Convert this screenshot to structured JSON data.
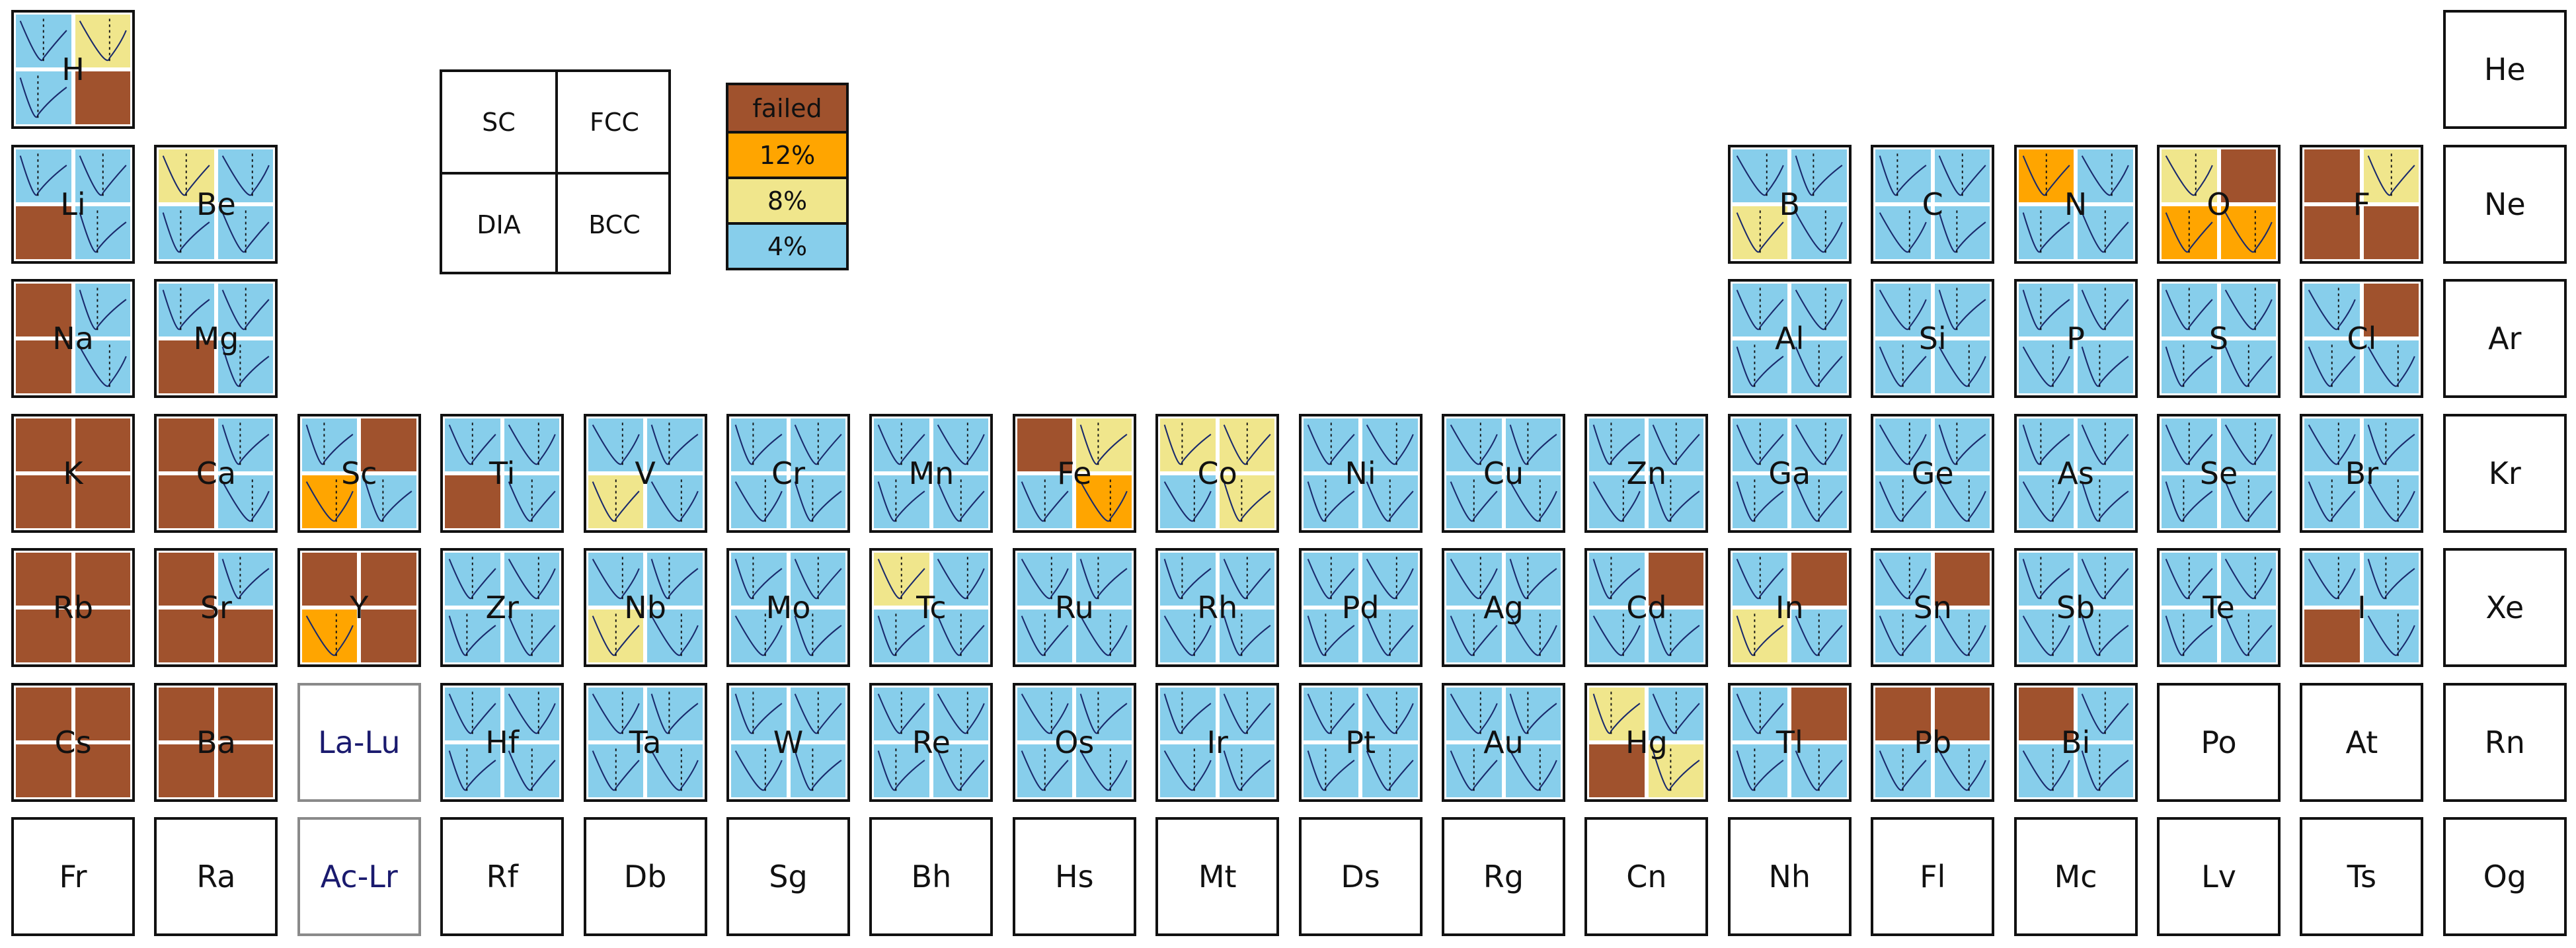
{
  "colors": {
    "failed": "#a0522d",
    "12%": "#ffa500",
    "8%": "#f0e68c",
    "4%": "#87ceeb",
    "line": "#1a2a6c",
    "placeholder_text": "#1a1a6e"
  },
  "key": {
    "top_left": "SC",
    "top_right": "FCC",
    "bottom_left": "DIA",
    "bottom_right": "BCC"
  },
  "legend": [
    {
      "label": "failed",
      "color_key": "failed"
    },
    {
      "label": "12%",
      "color_key": "12%"
    },
    {
      "label": "8%",
      "color_key": "8%"
    },
    {
      "label": "4%",
      "color_key": "4%"
    }
  ],
  "note": "Each element tile: 4 quadrants in order SC, FCC, DIA, BCC (see key). Quadrant codes: F=failed, O=12%, Y=8%, B=4%; empty list = no data.",
  "elements": [
    {
      "symbol": "H",
      "row": 1,
      "col": 1,
      "q": [
        "B",
        "Y",
        "B",
        "F"
      ]
    },
    {
      "symbol": "He",
      "row": 1,
      "col": 18,
      "q": []
    },
    {
      "symbol": "Li",
      "row": 2,
      "col": 1,
      "q": [
        "B",
        "B",
        "F",
        "B"
      ]
    },
    {
      "symbol": "Be",
      "row": 2,
      "col": 2,
      "q": [
        "Y",
        "B",
        "B",
        "B"
      ]
    },
    {
      "symbol": "B",
      "row": 2,
      "col": 13,
      "q": [
        "B",
        "B",
        "Y",
        "B"
      ]
    },
    {
      "symbol": "C",
      "row": 2,
      "col": 14,
      "q": [
        "B",
        "B",
        "B",
        "B"
      ]
    },
    {
      "symbol": "N",
      "row": 2,
      "col": 15,
      "q": [
        "O",
        "B",
        "B",
        "B"
      ]
    },
    {
      "symbol": "O",
      "row": 2,
      "col": 16,
      "q": [
        "Y",
        "F",
        "O",
        "O"
      ]
    },
    {
      "symbol": "F",
      "row": 2,
      "col": 17,
      "q": [
        "F",
        "Y",
        "F",
        "F"
      ]
    },
    {
      "symbol": "Ne",
      "row": 2,
      "col": 18,
      "q": []
    },
    {
      "symbol": "Na",
      "row": 3,
      "col": 1,
      "q": [
        "F",
        "B",
        "F",
        "B"
      ]
    },
    {
      "symbol": "Mg",
      "row": 3,
      "col": 2,
      "q": [
        "B",
        "B",
        "F",
        "B"
      ]
    },
    {
      "symbol": "Al",
      "row": 3,
      "col": 13,
      "q": [
        "B",
        "B",
        "B",
        "B"
      ]
    },
    {
      "symbol": "Si",
      "row": 3,
      "col": 14,
      "q": [
        "B",
        "B",
        "B",
        "B"
      ]
    },
    {
      "symbol": "P",
      "row": 3,
      "col": 15,
      "q": [
        "B",
        "B",
        "B",
        "B"
      ]
    },
    {
      "symbol": "S",
      "row": 3,
      "col": 16,
      "q": [
        "B",
        "B",
        "B",
        "B"
      ]
    },
    {
      "symbol": "Cl",
      "row": 3,
      "col": 17,
      "q": [
        "B",
        "F",
        "B",
        "B"
      ]
    },
    {
      "symbol": "Ar",
      "row": 3,
      "col": 18,
      "q": []
    },
    {
      "symbol": "K",
      "row": 4,
      "col": 1,
      "q": [
        "F",
        "F",
        "F",
        "F"
      ]
    },
    {
      "symbol": "Ca",
      "row": 4,
      "col": 2,
      "q": [
        "F",
        "B",
        "F",
        "B"
      ]
    },
    {
      "symbol": "Sc",
      "row": 4,
      "col": 3,
      "q": [
        "B",
        "F",
        "O",
        "B"
      ]
    },
    {
      "symbol": "Ti",
      "row": 4,
      "col": 4,
      "q": [
        "B",
        "B",
        "F",
        "B"
      ]
    },
    {
      "symbol": "V",
      "row": 4,
      "col": 5,
      "q": [
        "B",
        "B",
        "Y",
        "B"
      ]
    },
    {
      "symbol": "Cr",
      "row": 4,
      "col": 6,
      "q": [
        "B",
        "B",
        "B",
        "B"
      ]
    },
    {
      "symbol": "Mn",
      "row": 4,
      "col": 7,
      "q": [
        "B",
        "B",
        "B",
        "B"
      ]
    },
    {
      "symbol": "Fe",
      "row": 4,
      "col": 8,
      "q": [
        "F",
        "Y",
        "B",
        "O"
      ]
    },
    {
      "symbol": "Co",
      "row": 4,
      "col": 9,
      "q": [
        "Y",
        "Y",
        "B",
        "Y"
      ]
    },
    {
      "symbol": "Ni",
      "row": 4,
      "col": 10,
      "q": [
        "B",
        "B",
        "B",
        "B"
      ]
    },
    {
      "symbol": "Cu",
      "row": 4,
      "col": 11,
      "q": [
        "B",
        "B",
        "B",
        "B"
      ]
    },
    {
      "symbol": "Zn",
      "row": 4,
      "col": 12,
      "q": [
        "B",
        "B",
        "B",
        "B"
      ]
    },
    {
      "symbol": "Ga",
      "row": 4,
      "col": 13,
      "q": [
        "B",
        "B",
        "B",
        "B"
      ]
    },
    {
      "symbol": "Ge",
      "row": 4,
      "col": 14,
      "q": [
        "B",
        "B",
        "B",
        "B"
      ]
    },
    {
      "symbol": "As",
      "row": 4,
      "col": 15,
      "q": [
        "B",
        "B",
        "B",
        "B"
      ]
    },
    {
      "symbol": "Se",
      "row": 4,
      "col": 16,
      "q": [
        "B",
        "B",
        "B",
        "B"
      ]
    },
    {
      "symbol": "Br",
      "row": 4,
      "col": 17,
      "q": [
        "B",
        "B",
        "B",
        "B"
      ]
    },
    {
      "symbol": "Kr",
      "row": 4,
      "col": 18,
      "q": []
    },
    {
      "symbol": "Rb",
      "row": 5,
      "col": 1,
      "q": [
        "F",
        "F",
        "F",
        "F"
      ]
    },
    {
      "symbol": "Sr",
      "row": 5,
      "col": 2,
      "q": [
        "F",
        "B",
        "F",
        "F"
      ]
    },
    {
      "symbol": "Y",
      "row": 5,
      "col": 3,
      "q": [
        "F",
        "F",
        "O",
        "F"
      ]
    },
    {
      "symbol": "Zr",
      "row": 5,
      "col": 4,
      "q": [
        "B",
        "B",
        "B",
        "B"
      ]
    },
    {
      "symbol": "Nb",
      "row": 5,
      "col": 5,
      "q": [
        "B",
        "B",
        "Y",
        "B"
      ]
    },
    {
      "symbol": "Mo",
      "row": 5,
      "col": 6,
      "q": [
        "B",
        "B",
        "B",
        "B"
      ]
    },
    {
      "symbol": "Tc",
      "row": 5,
      "col": 7,
      "q": [
        "Y",
        "B",
        "B",
        "B"
      ]
    },
    {
      "symbol": "Ru",
      "row": 5,
      "col": 8,
      "q": [
        "B",
        "B",
        "B",
        "B"
      ]
    },
    {
      "symbol": "Rh",
      "row": 5,
      "col": 9,
      "q": [
        "B",
        "B",
        "B",
        "B"
      ]
    },
    {
      "symbol": "Pd",
      "row": 5,
      "col": 10,
      "q": [
        "B",
        "B",
        "B",
        "B"
      ]
    },
    {
      "symbol": "Ag",
      "row": 5,
      "col": 11,
      "q": [
        "B",
        "B",
        "B",
        "B"
      ]
    },
    {
      "symbol": "Cd",
      "row": 5,
      "col": 12,
      "q": [
        "B",
        "F",
        "B",
        "B"
      ]
    },
    {
      "symbol": "In",
      "row": 5,
      "col": 13,
      "q": [
        "B",
        "F",
        "Y",
        "B"
      ]
    },
    {
      "symbol": "Sn",
      "row": 5,
      "col": 14,
      "q": [
        "B",
        "F",
        "B",
        "B"
      ]
    },
    {
      "symbol": "Sb",
      "row": 5,
      "col": 15,
      "q": [
        "B",
        "B",
        "B",
        "B"
      ]
    },
    {
      "symbol": "Te",
      "row": 5,
      "col": 16,
      "q": [
        "B",
        "B",
        "B",
        "B"
      ]
    },
    {
      "symbol": "I",
      "row": 5,
      "col": 17,
      "q": [
        "B",
        "B",
        "F",
        "B"
      ]
    },
    {
      "symbol": "Xe",
      "row": 5,
      "col": 18,
      "q": []
    },
    {
      "symbol": "Cs",
      "row": 6,
      "col": 1,
      "q": [
        "F",
        "F",
        "F",
        "F"
      ]
    },
    {
      "symbol": "Ba",
      "row": 6,
      "col": 2,
      "q": [
        "F",
        "F",
        "F",
        "F"
      ]
    },
    {
      "symbol": "La-Lu",
      "row": 6,
      "col": 3,
      "q": [],
      "placeholder": true
    },
    {
      "symbol": "Hf",
      "row": 6,
      "col": 4,
      "q": [
        "B",
        "B",
        "B",
        "B"
      ]
    },
    {
      "symbol": "Ta",
      "row": 6,
      "col": 5,
      "q": [
        "B",
        "B",
        "B",
        "B"
      ]
    },
    {
      "symbol": "W",
      "row": 6,
      "col": 6,
      "q": [
        "B",
        "B",
        "B",
        "B"
      ]
    },
    {
      "symbol": "Re",
      "row": 6,
      "col": 7,
      "q": [
        "B",
        "B",
        "B",
        "B"
      ]
    },
    {
      "symbol": "Os",
      "row": 6,
      "col": 8,
      "q": [
        "B",
        "B",
        "B",
        "B"
      ]
    },
    {
      "symbol": "Ir",
      "row": 6,
      "col": 9,
      "q": [
        "B",
        "B",
        "B",
        "B"
      ]
    },
    {
      "symbol": "Pt",
      "row": 6,
      "col": 10,
      "q": [
        "B",
        "B",
        "B",
        "B"
      ]
    },
    {
      "symbol": "Au",
      "row": 6,
      "col": 11,
      "q": [
        "B",
        "B",
        "B",
        "B"
      ]
    },
    {
      "symbol": "Hg",
      "row": 6,
      "col": 12,
      "q": [
        "Y",
        "B",
        "F",
        "Y"
      ]
    },
    {
      "symbol": "Tl",
      "row": 6,
      "col": 13,
      "q": [
        "B",
        "F",
        "B",
        "B"
      ]
    },
    {
      "symbol": "Pb",
      "row": 6,
      "col": 14,
      "q": [
        "F",
        "F",
        "B",
        "B"
      ]
    },
    {
      "symbol": "Bi",
      "row": 6,
      "col": 15,
      "q": [
        "F",
        "B",
        "B",
        "B"
      ]
    },
    {
      "symbol": "Po",
      "row": 6,
      "col": 16,
      "q": []
    },
    {
      "symbol": "At",
      "row": 6,
      "col": 17,
      "q": []
    },
    {
      "symbol": "Rn",
      "row": 6,
      "col": 18,
      "q": []
    },
    {
      "symbol": "Fr",
      "row": 7,
      "col": 1,
      "q": []
    },
    {
      "symbol": "Ra",
      "row": 7,
      "col": 2,
      "q": []
    },
    {
      "symbol": "Ac-Lr",
      "row": 7,
      "col": 3,
      "q": [],
      "placeholder": true
    },
    {
      "symbol": "Rf",
      "row": 7,
      "col": 4,
      "q": []
    },
    {
      "symbol": "Db",
      "row": 7,
      "col": 5,
      "q": []
    },
    {
      "symbol": "Sg",
      "row": 7,
      "col": 6,
      "q": []
    },
    {
      "symbol": "Bh",
      "row": 7,
      "col": 7,
      "q": []
    },
    {
      "symbol": "Hs",
      "row": 7,
      "col": 8,
      "q": []
    },
    {
      "symbol": "Mt",
      "row": 7,
      "col": 9,
      "q": []
    },
    {
      "symbol": "Ds",
      "row": 7,
      "col": 10,
      "q": []
    },
    {
      "symbol": "Rg",
      "row": 7,
      "col": 11,
      "q": []
    },
    {
      "symbol": "Cn",
      "row": 7,
      "col": 12,
      "q": []
    },
    {
      "symbol": "Nh",
      "row": 7,
      "col": 13,
      "q": []
    },
    {
      "symbol": "Fl",
      "row": 7,
      "col": 14,
      "q": []
    },
    {
      "symbol": "Mc",
      "row": 7,
      "col": 15,
      "q": []
    },
    {
      "symbol": "Lv",
      "row": 7,
      "col": 16,
      "q": []
    },
    {
      "symbol": "Ts",
      "row": 7,
      "col": 17,
      "q": []
    },
    {
      "symbol": "Og",
      "row": 7,
      "col": 18,
      "q": []
    }
  ]
}
